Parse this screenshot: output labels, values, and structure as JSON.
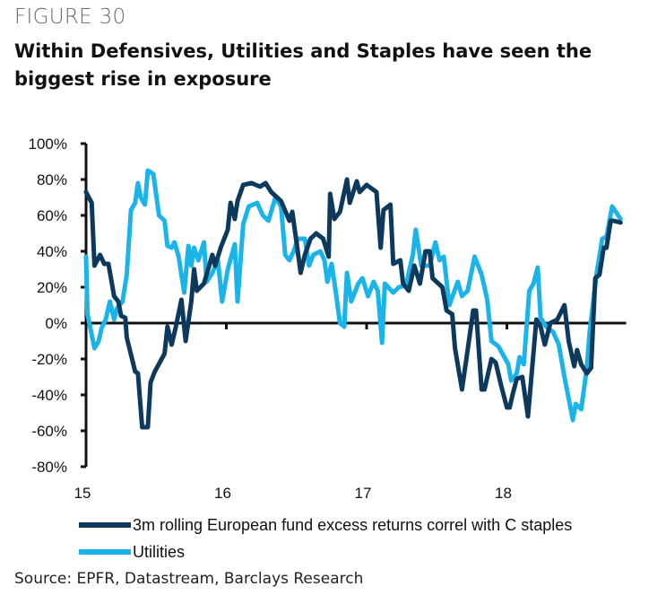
{
  "figure_label": "FIGURE 30",
  "source": "Source: EPFR, Datastream, Barclays Research",
  "colors": {
    "series1": "#0d3a5c",
    "series2": "#1ab4e8",
    "axis": "#111111"
  },
  "chart_data": {
    "type": "line",
    "title": "Within Defensives, Utilities and Staples have seen the biggest rise in exposure",
    "xlabel": "",
    "ylabel": "",
    "ylim": [
      -80,
      100
    ],
    "xlim": [
      15,
      18.85
    ],
    "yticks": [
      "100%",
      "80%",
      "60%",
      "40%",
      "20%",
      "0%",
      "-20%",
      "-40%",
      "-60%",
      "-80%"
    ],
    "ytick_values": [
      100,
      80,
      60,
      40,
      20,
      0,
      -20,
      -40,
      -60,
      -80
    ],
    "xticks": [
      "15",
      "16",
      "17",
      "18"
    ],
    "xtick_values": [
      15,
      16,
      17,
      18
    ],
    "grid": false,
    "legend": "bottom",
    "series": [
      {
        "name": "3m rolling European fund excess returns correl with C staples",
        "x": [
          15.0,
          15.04,
          15.06,
          15.1,
          15.13,
          15.16,
          15.2,
          15.23,
          15.25,
          15.28,
          15.29,
          15.35,
          15.37,
          15.4,
          15.44,
          15.46,
          15.49,
          15.56,
          15.58,
          15.61,
          15.64,
          15.68,
          15.71,
          15.75,
          15.77,
          15.79,
          15.84,
          15.9,
          15.92,
          15.96,
          16.01,
          16.03,
          16.06,
          16.08,
          16.12,
          16.18,
          16.24,
          16.28,
          16.32,
          16.39,
          16.45,
          16.47,
          16.5,
          16.53,
          16.56,
          16.6,
          16.64,
          16.69,
          16.73,
          16.74,
          16.77,
          16.81,
          16.86,
          16.88,
          16.93,
          16.95,
          17.0,
          17.07,
          17.1,
          17.12,
          17.17,
          17.19,
          17.24,
          17.26,
          17.3,
          17.34,
          17.38,
          17.42,
          17.45,
          17.47,
          17.54,
          17.57,
          17.61,
          17.63,
          17.68,
          17.72,
          17.76,
          17.78,
          17.82,
          17.84,
          17.89,
          17.92,
          17.96,
          18.0,
          18.02,
          18.04,
          18.07,
          18.11,
          18.15,
          18.21,
          18.24,
          18.27,
          18.31,
          18.36,
          18.41,
          18.44,
          18.48,
          18.5,
          18.53,
          18.57,
          18.6,
          18.63,
          18.66,
          18.69,
          18.71,
          18.74,
          18.76,
          18.81
        ],
        "y": [
          73,
          67,
          32,
          38,
          33,
          33,
          15,
          12,
          4,
          3,
          -8,
          -27,
          -28,
          -58,
          -58,
          -33,
          -27,
          -17,
          -2,
          -12,
          -2,
          13,
          -10,
          12,
          30,
          18,
          22,
          38,
          32,
          42,
          52,
          67,
          58,
          68,
          77,
          78,
          76,
          78,
          73,
          68,
          57,
          62,
          45,
          28,
          38,
          47,
          50,
          47,
          37,
          72,
          58,
          62,
          80,
          67,
          79,
          73,
          77,
          73,
          42,
          63,
          66,
          33,
          35,
          22,
          18,
          32,
          22,
          40,
          40,
          25,
          20,
          7,
          5,
          -14,
          -37,
          -15,
          7,
          7,
          -37,
          -37,
          -20,
          -22,
          -35,
          -47,
          -47,
          -40,
          -31,
          -30,
          -52,
          2,
          -2,
          -12,
          0,
          2,
          10,
          -10,
          -24,
          -15,
          -23,
          -28,
          -25,
          25,
          27,
          42,
          42,
          57,
          57,
          56
        ]
      },
      {
        "name": "Utilities",
        "x": [
          15.0,
          15.01,
          15.06,
          15.09,
          15.11,
          15.14,
          15.17,
          15.2,
          15.22,
          15.26,
          15.29,
          15.32,
          15.35,
          15.37,
          15.39,
          15.42,
          15.44,
          15.48,
          15.52,
          15.56,
          15.58,
          15.61,
          15.63,
          15.66,
          15.7,
          15.73,
          15.75,
          15.77,
          15.8,
          15.84,
          15.86,
          15.9,
          15.94,
          15.97,
          16.01,
          16.06,
          16.08,
          16.12,
          16.16,
          16.22,
          16.26,
          16.3,
          16.35,
          16.39,
          16.42,
          16.45,
          16.48,
          16.51,
          16.56,
          16.59,
          16.62,
          16.67,
          16.7,
          16.72,
          16.75,
          16.77,
          16.81,
          16.84,
          16.86,
          16.89,
          16.94,
          16.97,
          17.01,
          17.05,
          17.08,
          17.11,
          17.13,
          17.19,
          17.23,
          17.28,
          17.33,
          17.35,
          17.39,
          17.45,
          17.49,
          17.52,
          17.55,
          17.59,
          17.65,
          17.68,
          17.72,
          17.77,
          17.82,
          17.86,
          17.89,
          17.94,
          18.01,
          18.03,
          18.07,
          18.09,
          18.12,
          18.16,
          18.19,
          18.22,
          18.24,
          18.28,
          18.33,
          18.37,
          18.41,
          18.47,
          18.49,
          18.53,
          18.57,
          18.59,
          18.64,
          18.68,
          18.71,
          18.75,
          18.81
        ],
        "y": [
          37,
          5,
          -14,
          -10,
          -3,
          2,
          12,
          2,
          8,
          12,
          27,
          63,
          67,
          78,
          70,
          66,
          85,
          83,
          60,
          57,
          43,
          42,
          45,
          37,
          17,
          43,
          32,
          42,
          35,
          45,
          23,
          28,
          35,
          12,
          30,
          44,
          12,
          55,
          65,
          67,
          60,
          57,
          70,
          65,
          38,
          35,
          40,
          47,
          47,
          32,
          38,
          40,
          35,
          23,
          33,
          23,
          0,
          -2,
          28,
          12,
          22,
          25,
          15,
          23,
          18,
          -11,
          22,
          17,
          20,
          21,
          38,
          52,
          32,
          32,
          45,
          35,
          37,
          10,
          23,
          15,
          18,
          37,
          27,
          13,
          -10,
          -13,
          -23,
          -32,
          -28,
          -19,
          -23,
          18,
          22,
          31,
          3,
          -2,
          -5,
          -12,
          -30,
          -54,
          -45,
          -48,
          -25,
          -5,
          28,
          47,
          48,
          65,
          58
        ]
      }
    ]
  }
}
